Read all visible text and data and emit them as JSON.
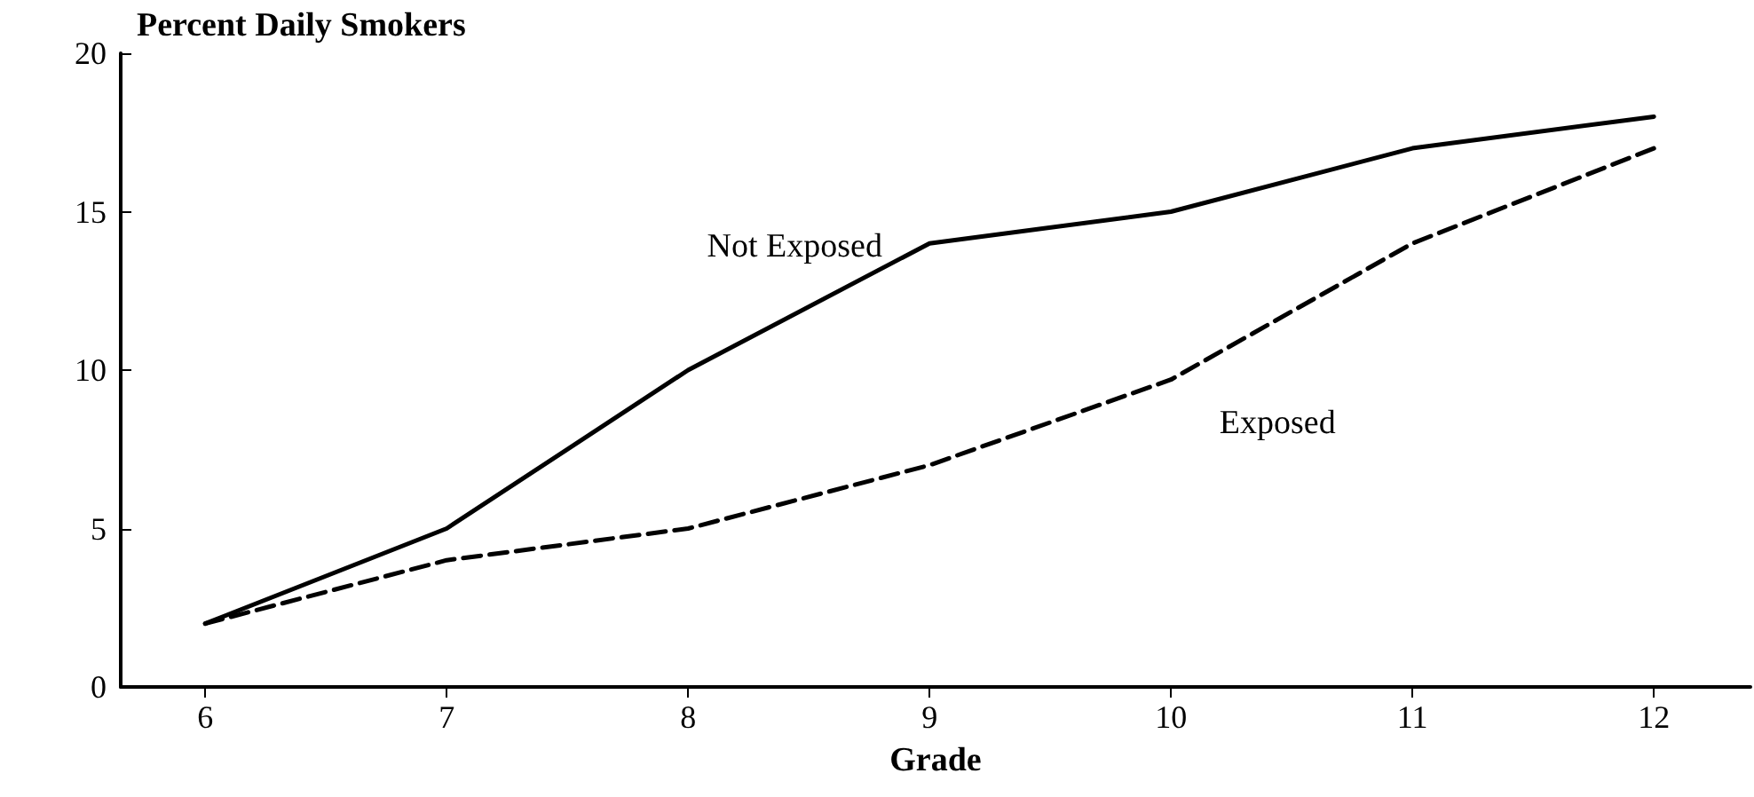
{
  "chart_data": {
    "type": "line",
    "ylabel": "Percent Daily Smokers",
    "xlabel": "Grade",
    "x": [
      6,
      7,
      8,
      9,
      10,
      11,
      12
    ],
    "series": [
      {
        "name": "Not Exposed",
        "color": "#000000",
        "line_style": "solid",
        "values": [
          2,
          5,
          10,
          14,
          15,
          17,
          18
        ]
      },
      {
        "name": "Exposed",
        "color": "#000000",
        "line_style": "dashed",
        "values": [
          2,
          4,
          5,
          7,
          9.7,
          14,
          17
        ]
      }
    ],
    "xlim": [
      5.65,
      12.4
    ],
    "xticks": [
      6,
      7,
      8,
      9,
      10,
      11,
      12
    ],
    "ylim": [
      0,
      20
    ],
    "yticks": [
      0,
      5,
      10,
      15,
      20
    ],
    "grid": false,
    "legend": false,
    "marker": "none"
  }
}
